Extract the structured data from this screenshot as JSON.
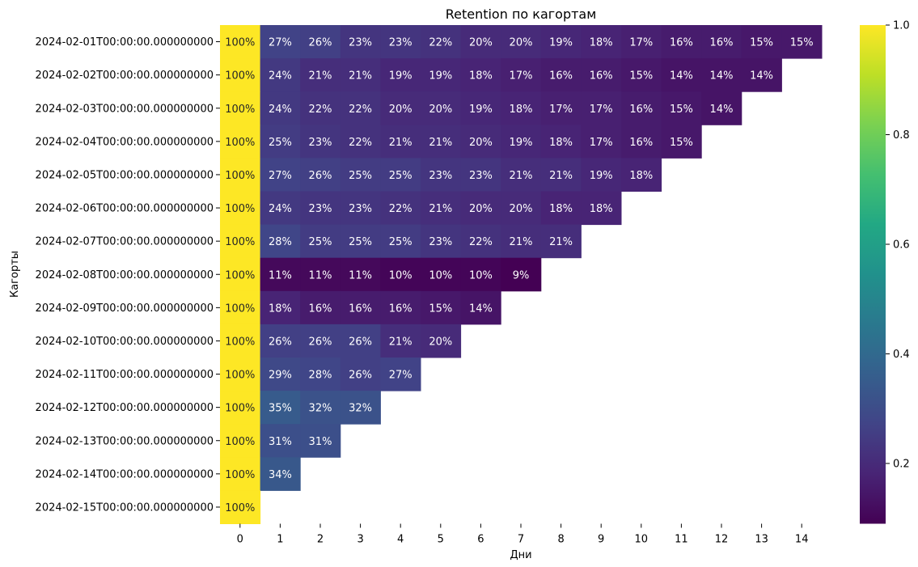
{
  "chart_data": {
    "type": "heatmap",
    "title": "Retention по кагортам",
    "xlabel": "Дни",
    "ylabel": "Кагорты",
    "x": [
      "0",
      "1",
      "2",
      "3",
      "4",
      "5",
      "6",
      "7",
      "8",
      "9",
      "10",
      "11",
      "12",
      "13",
      "14"
    ],
    "y": [
      "2024-02-01T00:00:00.000000000",
      "2024-02-02T00:00:00.000000000",
      "2024-02-03T00:00:00.000000000",
      "2024-02-04T00:00:00.000000000",
      "2024-02-05T00:00:00.000000000",
      "2024-02-06T00:00:00.000000000",
      "2024-02-07T00:00:00.000000000",
      "2024-02-08T00:00:00.000000000",
      "2024-02-09T00:00:00.000000000",
      "2024-02-10T00:00:00.000000000",
      "2024-02-11T00:00:00.000000000",
      "2024-02-12T00:00:00.000000000",
      "2024-02-13T00:00:00.000000000",
      "2024-02-14T00:00:00.000000000",
      "2024-02-15T00:00:00.000000000"
    ],
    "values": [
      [
        1.0,
        0.27,
        0.26,
        0.23,
        0.23,
        0.22,
        0.2,
        0.2,
        0.19,
        0.18,
        0.17,
        0.16,
        0.16,
        0.15,
        0.15
      ],
      [
        1.0,
        0.24,
        0.21,
        0.21,
        0.19,
        0.19,
        0.18,
        0.17,
        0.16,
        0.16,
        0.15,
        0.14,
        0.14,
        0.14
      ],
      [
        1.0,
        0.24,
        0.22,
        0.22,
        0.2,
        0.2,
        0.19,
        0.18,
        0.17,
        0.17,
        0.16,
        0.15,
        0.14
      ],
      [
        1.0,
        0.25,
        0.23,
        0.22,
        0.21,
        0.21,
        0.2,
        0.19,
        0.18,
        0.17,
        0.16,
        0.15
      ],
      [
        1.0,
        0.27,
        0.26,
        0.25,
        0.25,
        0.23,
        0.23,
        0.21,
        0.21,
        0.19,
        0.18
      ],
      [
        1.0,
        0.24,
        0.23,
        0.23,
        0.22,
        0.21,
        0.2,
        0.2,
        0.18,
        0.18
      ],
      [
        1.0,
        0.28,
        0.25,
        0.25,
        0.25,
        0.23,
        0.22,
        0.21,
        0.21
      ],
      [
        1.0,
        0.11,
        0.11,
        0.11,
        0.1,
        0.1,
        0.1,
        0.09
      ],
      [
        1.0,
        0.18,
        0.16,
        0.16,
        0.16,
        0.15,
        0.14
      ],
      [
        1.0,
        0.26,
        0.26,
        0.26,
        0.21,
        0.2
      ],
      [
        1.0,
        0.29,
        0.28,
        0.26,
        0.27
      ],
      [
        1.0,
        0.35,
        0.32,
        0.32
      ],
      [
        1.0,
        0.31,
        0.31
      ],
      [
        1.0,
        0.34
      ],
      [
        1.0
      ]
    ],
    "colormap": "viridis",
    "vmin": 0.09,
    "vmax": 1.0,
    "colorbar": {
      "ticks": [
        0.2,
        0.4,
        0.6,
        0.8,
        1.0
      ],
      "tick_labels": [
        "0.2",
        "0.4",
        "0.6",
        "0.8",
        "1.0"
      ]
    },
    "annotation_format": "percent"
  }
}
